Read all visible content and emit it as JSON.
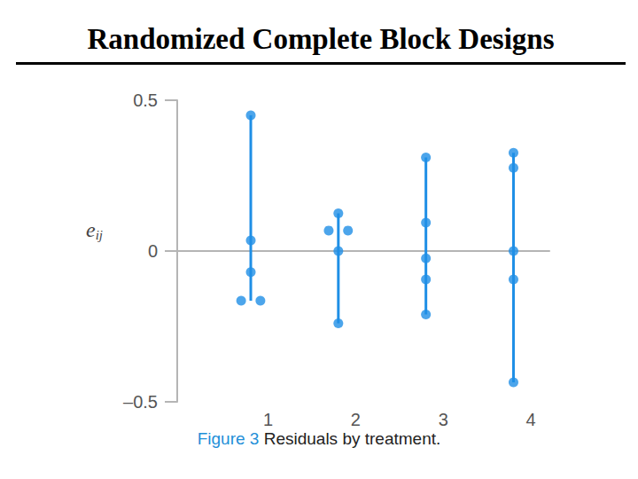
{
  "chart_data": {
    "type": "scatter",
    "title": "Randomized Complete Block Designs",
    "ylabel": "eij",
    "caption": {
      "label": "Figure 3",
      "text": "Residuals by treatment."
    },
    "categories": [
      "1",
      "2",
      "3",
      "4"
    ],
    "values": [
      [
        0.45,
        0.035,
        -0.07,
        -0.165,
        -0.165
      ],
      [
        0.125,
        0.068,
        0.068,
        0.0,
        -0.24
      ],
      [
        0.31,
        0.094,
        -0.024,
        -0.094,
        -0.21
      ],
      [
        0.326,
        0.276,
        0.0,
        -0.094,
        -0.435
      ]
    ],
    "color": "#1f8fe6",
    "ylim": [
      -0.5,
      0.5
    ],
    "yticks": [
      {
        "value": -0.5,
        "label": "–0.5"
      },
      0,
      0.5
    ],
    "grid": false
  }
}
